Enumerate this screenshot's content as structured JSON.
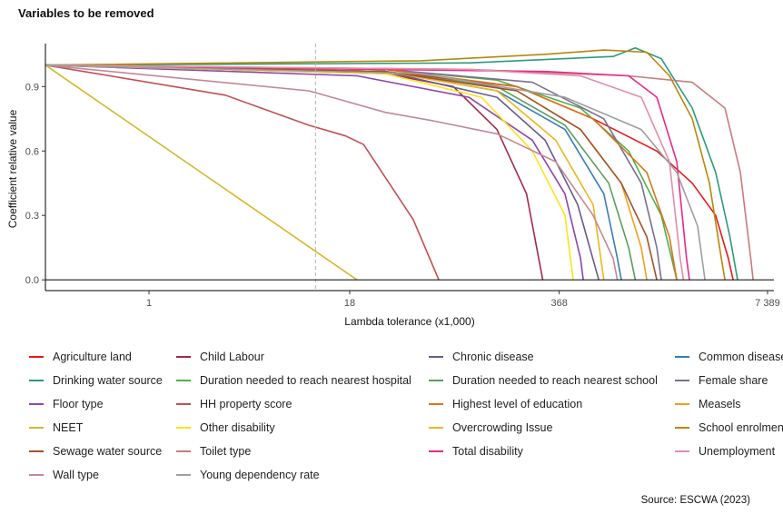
{
  "chart_data": {
    "type": "line",
    "title": "Variables to be removed",
    "xlabel": "Lambda tolerance (x1,000)",
    "ylabel": "Coefficient relative value",
    "x_scale": "log",
    "xlim": [
      0.225,
      8100
    ],
    "ylim": [
      -0.05,
      1.1
    ],
    "x_ticks": [
      {
        "value": 1,
        "label": "1"
      },
      {
        "value": 18,
        "label": "18"
      },
      {
        "value": 368,
        "label": "368"
      },
      {
        "value": 7389,
        "label": "7 389"
      }
    ],
    "y_ticks": [
      {
        "value": 0,
        "label": "0.0"
      },
      {
        "value": 0.3,
        "label": "0.3"
      },
      {
        "value": 0.6,
        "label": "0.6"
      },
      {
        "value": 0.9,
        "label": "0.9"
      }
    ],
    "vline": {
      "x": 11,
      "style": "dashed"
    },
    "hline": {
      "y": 0
    },
    "grid": false,
    "legend_position": "bottom",
    "series": [
      {
        "name": "Agriculture land",
        "color": "#e41a1c",
        "points": [
          [
            0.225,
            1
          ],
          [
            30,
            0.97
          ],
          [
            200,
            0.9
          ],
          [
            600,
            0.75
          ],
          [
            1500,
            0.6
          ],
          [
            2500,
            0.45
          ],
          [
            3500,
            0.3
          ],
          [
            4200,
            0.1
          ],
          [
            4500,
            0
          ]
        ]
      },
      {
        "name": "Child Labour",
        "color": "#a3294a",
        "points": [
          [
            0.225,
            1
          ],
          [
            30,
            0.96
          ],
          [
            80,
            0.9
          ],
          [
            150,
            0.7
          ],
          [
            230,
            0.4
          ],
          [
            290,
            0
          ]
        ]
      },
      {
        "name": "Chronic disease",
        "color": "#6a5a8c",
        "points": [
          [
            0.225,
            1
          ],
          [
            30,
            0.97
          ],
          [
            150,
            0.85
          ],
          [
            300,
            0.65
          ],
          [
            480,
            0.35
          ],
          [
            650,
            0
          ]
        ]
      },
      {
        "name": "Common disease",
        "color": "#377eb8",
        "points": [
          [
            0.225,
            1
          ],
          [
            30,
            0.97
          ],
          [
            150,
            0.88
          ],
          [
            400,
            0.7
          ],
          [
            700,
            0.4
          ],
          [
            850,
            0.1
          ],
          [
            900,
            0
          ]
        ]
      },
      {
        "name": "Drinking water source",
        "color": "#2b9a80",
        "points": [
          [
            0.225,
            1
          ],
          [
            100,
            1.01
          ],
          [
            800,
            1.04
          ],
          [
            1100,
            1.08
          ],
          [
            1600,
            1.03
          ],
          [
            2500,
            0.8
          ],
          [
            3500,
            0.5
          ],
          [
            4300,
            0.2
          ],
          [
            4800,
            0
          ]
        ]
      },
      {
        "name": "Duration needed to reach nearest hospital",
        "color": "#4daf4a",
        "points": [
          [
            0.225,
            1
          ],
          [
            30,
            0.98
          ],
          [
            150,
            0.93
          ],
          [
            500,
            0.8
          ],
          [
            1000,
            0.6
          ],
          [
            1600,
            0.3
          ],
          [
            2000,
            0
          ]
        ]
      },
      {
        "name": "Duration needed to reach nearest school",
        "color": "#5a9e5a",
        "points": [
          [
            0.225,
            1
          ],
          [
            30,
            0.97
          ],
          [
            150,
            0.9
          ],
          [
            400,
            0.72
          ],
          [
            750,
            0.45
          ],
          [
            1000,
            0.15
          ],
          [
            1100,
            0
          ]
        ]
      },
      {
        "name": "Female share",
        "color": "#7a6f8f",
        "points": [
          [
            0.225,
            1
          ],
          [
            30,
            0.98
          ],
          [
            250,
            0.92
          ],
          [
            700,
            0.75
          ],
          [
            1200,
            0.45
          ],
          [
            1500,
            0.15
          ],
          [
            1600,
            0
          ]
        ]
      },
      {
        "name": "Floor type",
        "color": "#8e44ad",
        "points": [
          [
            0.225,
            1
          ],
          [
            20,
            0.95
          ],
          [
            100,
            0.85
          ],
          [
            250,
            0.65
          ],
          [
            400,
            0.4
          ],
          [
            500,
            0.1
          ],
          [
            520,
            0
          ]
        ]
      },
      {
        "name": "HH property score",
        "color": "#c44e52",
        "points": [
          [
            0.225,
            1
          ],
          [
            3,
            0.86
          ],
          [
            10,
            0.72
          ],
          [
            17,
            0.67
          ],
          [
            22,
            0.63
          ],
          [
            45,
            0.28
          ],
          [
            65,
            0
          ]
        ]
      },
      {
        "name": "Highest level of education",
        "color": "#d9741c",
        "points": [
          [
            0.225,
            1
          ],
          [
            30,
            0.98
          ],
          [
            200,
            0.9
          ],
          [
            600,
            0.75
          ],
          [
            1300,
            0.5
          ],
          [
            1800,
            0.2
          ],
          [
            2000,
            0
          ]
        ]
      },
      {
        "name": "Measels",
        "color": "#f0a020",
        "points": [
          [
            0.225,
            1
          ],
          [
            30,
            0.97
          ],
          [
            200,
            0.88
          ],
          [
            500,
            0.7
          ],
          [
            900,
            0.45
          ],
          [
            1200,
            0.15
          ],
          [
            1300,
            0
          ]
        ]
      },
      {
        "name": "NEET",
        "color": "#d4b82c",
        "points": [
          [
            0.225,
            1
          ],
          [
            20,
            0
          ]
        ]
      },
      {
        "name": "Other disability",
        "color": "#ffe21a",
        "points": [
          [
            0.225,
            1
          ],
          [
            30,
            0.96
          ],
          [
            120,
            0.85
          ],
          [
            250,
            0.6
          ],
          [
            400,
            0.3
          ],
          [
            450,
            0
          ]
        ]
      },
      {
        "name": "Overcrowding Issue",
        "color": "#e8b820",
        "points": [
          [
            0.225,
            1
          ],
          [
            30,
            0.97
          ],
          [
            150,
            0.88
          ],
          [
            350,
            0.65
          ],
          [
            600,
            0.35
          ],
          [
            700,
            0
          ]
        ]
      },
      {
        "name": "School enrolment",
        "color": "#b8860b",
        "points": [
          [
            0.225,
            1
          ],
          [
            50,
            1.02
          ],
          [
            300,
            1.05
          ],
          [
            700,
            1.07
          ],
          [
            1300,
            1.06
          ],
          [
            1800,
            0.95
          ],
          [
            2500,
            0.75
          ],
          [
            3200,
            0.45
          ],
          [
            3800,
            0.1
          ],
          [
            4000,
            0
          ]
        ]
      },
      {
        "name": "Sewage water source",
        "color": "#a0522d",
        "points": [
          [
            0.225,
            1
          ],
          [
            30,
            0.97
          ],
          [
            200,
            0.88
          ],
          [
            500,
            0.7
          ],
          [
            900,
            0.45
          ],
          [
            1300,
            0.2
          ],
          [
            1500,
            0
          ]
        ]
      },
      {
        "name": "Toilet type",
        "color": "#c97b7b",
        "points": [
          [
            0.225,
            1
          ],
          [
            100,
            0.98
          ],
          [
            1000,
            0.95
          ],
          [
            2500,
            0.92
          ],
          [
            4000,
            0.8
          ],
          [
            5000,
            0.5
          ],
          [
            5800,
            0.1
          ],
          [
            6000,
            0
          ]
        ]
      },
      {
        "name": "Total disability",
        "color": "#e7298a",
        "points": [
          [
            0.225,
            1
          ],
          [
            300,
            0.97
          ],
          [
            1000,
            0.95
          ],
          [
            1500,
            0.85
          ],
          [
            2000,
            0.55
          ],
          [
            2300,
            0.1
          ],
          [
            2400,
            0
          ]
        ]
      },
      {
        "name": "Unemployment",
        "color": "#e08fa8",
        "points": [
          [
            0.225,
            1
          ],
          [
            100,
            0.98
          ],
          [
            500,
            0.95
          ],
          [
            1200,
            0.85
          ],
          [
            1800,
            0.55
          ],
          [
            2100,
            0.1
          ],
          [
            2200,
            0
          ]
        ]
      },
      {
        "name": "Wall type",
        "color": "#c08898",
        "points": [
          [
            0.225,
            1
          ],
          [
            10,
            0.88
          ],
          [
            30,
            0.78
          ],
          [
            60,
            0.74
          ],
          [
            150,
            0.68
          ],
          [
            350,
            0.55
          ],
          [
            600,
            0.3
          ],
          [
            800,
            0.1
          ],
          [
            850,
            0
          ]
        ]
      },
      {
        "name": "Young dependency rate",
        "color": "#9e9e9e",
        "points": [
          [
            0.225,
            1
          ],
          [
            50,
            0.96
          ],
          [
            400,
            0.85
          ],
          [
            1200,
            0.7
          ],
          [
            2000,
            0.5
          ],
          [
            2700,
            0.25
          ],
          [
            3000,
            0
          ]
        ]
      }
    ]
  },
  "source": "Source: ESCWA (2023)"
}
